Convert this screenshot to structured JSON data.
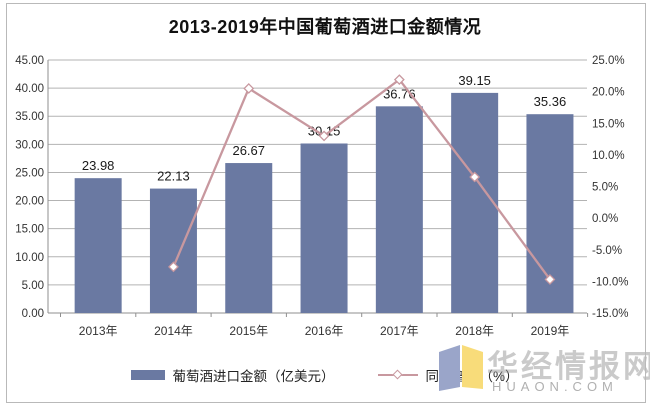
{
  "title": "2013-2019年中国葡萄酒进口金额情况",
  "chart_data": {
    "type": "bar+line combo",
    "categories": [
      "2013年",
      "2014年",
      "2015年",
      "2016年",
      "2017年",
      "2018年",
      "2019年"
    ],
    "series": [
      {
        "name": "葡萄酒进口金额（亿美元）",
        "type": "bar",
        "axis": "left",
        "values": [
          23.98,
          22.13,
          26.67,
          30.15,
          36.76,
          39.15,
          35.36
        ],
        "labels": [
          "23.98",
          "22.13",
          "26.67",
          "30.15",
          "36.76",
          "39.15",
          "35.36"
        ]
      },
      {
        "name": "同比增速（%）",
        "type": "line",
        "axis": "right",
        "values": [
          null,
          -7.7,
          20.5,
          13.0,
          21.9,
          6.5,
          -9.7
        ]
      }
    ],
    "left_axis": {
      "min": 0,
      "max": 45,
      "step": 5,
      "ticks": [
        "45.00",
        "40.00",
        "35.00",
        "30.00",
        "25.00",
        "20.00",
        "15.00",
        "10.00",
        "5.00",
        "0.00"
      ]
    },
    "right_axis": {
      "min": -15,
      "max": 25,
      "step": 5,
      "ticks": [
        "25.0%",
        "20.0%",
        "15.0%",
        "10.0%",
        "5.0%",
        "0.0%",
        "-5.0%",
        "-10.0%",
        "-15.0%"
      ]
    },
    "grid": true,
    "legend_position": "bottom",
    "colors": {
      "bar": "#6a79a2",
      "line": "#c8989f",
      "marker_fill": "#ffffff",
      "grid": "#b3b3b3",
      "axis": "#8f8f8f",
      "tick_text": "#333333",
      "bar_label_text": "#1a1a1a"
    }
  },
  "legend": {
    "bar_label": "葡萄酒进口金额（亿美元）",
    "line_label": "同比增速（%）"
  },
  "watermark": {
    "name": "华经情报网",
    "url": "HUAON.COM",
    "logo_blue": "#9aa5c9",
    "logo_yellow": "#f8dc7a"
  }
}
